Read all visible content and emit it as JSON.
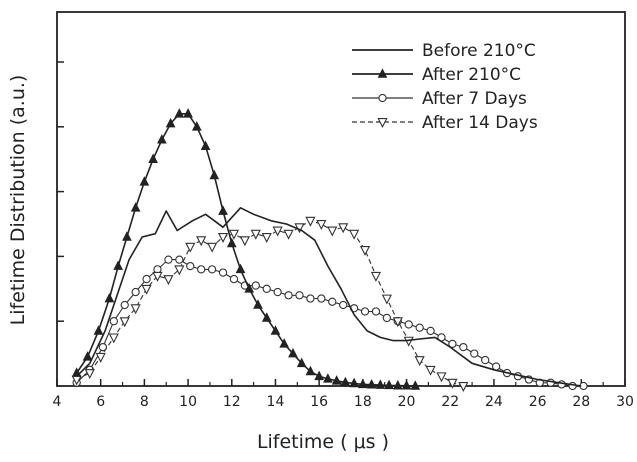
{
  "chart_data": {
    "type": "line",
    "title": "",
    "xlabel": "Lifetime ( μs )",
    "ylabel": "Lifetime Distribution (a.u.)",
    "xlim": [
      4,
      30
    ],
    "ylim": [
      0,
      1
    ],
    "x_ticks": [
      "4",
      "6",
      "8",
      "10",
      "12",
      "14",
      "16",
      "18",
      "20",
      "22",
      "24",
      "26",
      "28",
      "30"
    ],
    "y_tick_values": [
      0.2,
      0.4,
      0.6,
      0.8,
      1.0
    ],
    "y_tick_labels_shown": false,
    "grid": false,
    "legend_position": "top-right",
    "series": [
      {
        "name": "Before 210°C",
        "color": "#222222",
        "marker": "none",
        "dash": "solid",
        "points": [
          [
            4.9,
            0.03
          ],
          [
            5.5,
            0.07
          ],
          [
            6.2,
            0.17
          ],
          [
            6.8,
            0.29
          ],
          [
            7.3,
            0.39
          ],
          [
            7.9,
            0.46
          ],
          [
            8.5,
            0.47
          ],
          [
            9.0,
            0.54
          ],
          [
            9.5,
            0.48
          ],
          [
            10.2,
            0.51
          ],
          [
            10.8,
            0.53
          ],
          [
            11.6,
            0.49
          ],
          [
            12.4,
            0.55
          ],
          [
            13.0,
            0.53
          ],
          [
            13.8,
            0.51
          ],
          [
            14.5,
            0.5
          ],
          [
            15.2,
            0.48
          ],
          [
            15.8,
            0.45
          ],
          [
            16.4,
            0.37
          ],
          [
            17.0,
            0.3
          ],
          [
            17.6,
            0.22
          ],
          [
            18.2,
            0.17
          ],
          [
            18.8,
            0.15
          ],
          [
            19.4,
            0.14
          ],
          [
            20.0,
            0.14
          ],
          [
            20.6,
            0.145
          ],
          [
            21.3,
            0.15
          ],
          [
            22.0,
            0.12
          ],
          [
            23.0,
            0.07
          ],
          [
            24.0,
            0.05
          ],
          [
            25.0,
            0.035
          ],
          [
            26.0,
            0.02
          ],
          [
            27.0,
            0.01
          ],
          [
            28.0,
            0.0
          ]
        ]
      },
      {
        "name": "After 210°C",
        "color": "#222222",
        "marker": "triangle-up-filled",
        "dash": "solid",
        "points": [
          [
            4.9,
            0.04
          ],
          [
            5.4,
            0.09
          ],
          [
            5.9,
            0.17
          ],
          [
            6.4,
            0.27
          ],
          [
            6.8,
            0.37
          ],
          [
            7.2,
            0.46
          ],
          [
            7.6,
            0.55
          ],
          [
            8.0,
            0.63
          ],
          [
            8.4,
            0.7
          ],
          [
            8.8,
            0.76
          ],
          [
            9.2,
            0.81
          ],
          [
            9.6,
            0.84
          ],
          [
            10.0,
            0.84
          ],
          [
            10.4,
            0.8
          ],
          [
            10.8,
            0.74
          ],
          [
            11.2,
            0.65
          ],
          [
            11.6,
            0.54
          ],
          [
            12.0,
            0.44
          ],
          [
            12.4,
            0.36
          ],
          [
            12.8,
            0.3
          ],
          [
            13.2,
            0.25
          ],
          [
            13.6,
            0.21
          ],
          [
            14.0,
            0.17
          ],
          [
            14.4,
            0.13
          ],
          [
            14.8,
            0.1
          ],
          [
            15.2,
            0.07
          ],
          [
            15.6,
            0.045
          ],
          [
            16.0,
            0.03
          ],
          [
            16.4,
            0.022
          ],
          [
            16.8,
            0.016
          ],
          [
            17.2,
            0.011
          ],
          [
            17.6,
            0.008
          ],
          [
            18.0,
            0.005
          ],
          [
            18.4,
            0.004
          ],
          [
            18.8,
            0.003
          ],
          [
            19.2,
            0.002
          ],
          [
            19.6,
            0.001
          ],
          [
            20.0,
            0.001
          ],
          [
            20.4,
            0.0
          ]
        ]
      },
      {
        "name": "After 7 Days",
        "color": "#333333",
        "marker": "circle-open",
        "dash": "solid",
        "points": [
          [
            4.9,
            0.01
          ],
          [
            5.5,
            0.05
          ],
          [
            6.1,
            0.12
          ],
          [
            6.6,
            0.2
          ],
          [
            7.1,
            0.25
          ],
          [
            7.6,
            0.29
          ],
          [
            8.1,
            0.33
          ],
          [
            8.6,
            0.36
          ],
          [
            9.1,
            0.39
          ],
          [
            9.6,
            0.39
          ],
          [
            10.1,
            0.37
          ],
          [
            10.6,
            0.36
          ],
          [
            11.1,
            0.36
          ],
          [
            11.6,
            0.35
          ],
          [
            12.1,
            0.33
          ],
          [
            12.6,
            0.31
          ],
          [
            13.1,
            0.31
          ],
          [
            13.6,
            0.3
          ],
          [
            14.1,
            0.29
          ],
          [
            14.6,
            0.28
          ],
          [
            15.1,
            0.28
          ],
          [
            15.6,
            0.27
          ],
          [
            16.1,
            0.27
          ],
          [
            16.6,
            0.26
          ],
          [
            17.1,
            0.25
          ],
          [
            17.6,
            0.24
          ],
          [
            18.1,
            0.23
          ],
          [
            18.6,
            0.23
          ],
          [
            19.1,
            0.21
          ],
          [
            19.6,
            0.2
          ],
          [
            20.1,
            0.19
          ],
          [
            20.6,
            0.18
          ],
          [
            21.1,
            0.17
          ],
          [
            21.6,
            0.15
          ],
          [
            22.1,
            0.13
          ],
          [
            22.6,
            0.12
          ],
          [
            23.1,
            0.1
          ],
          [
            23.6,
            0.08
          ],
          [
            24.1,
            0.06
          ],
          [
            24.6,
            0.04
          ],
          [
            25.1,
            0.03
          ],
          [
            25.6,
            0.02
          ],
          [
            26.1,
            0.01
          ],
          [
            26.6,
            0.01
          ],
          [
            27.1,
            0.005
          ],
          [
            27.6,
            0.0
          ],
          [
            28.1,
            0.0
          ]
        ]
      },
      {
        "name": "After 14 Days",
        "color": "#333333",
        "marker": "triangle-down-open",
        "dash": "dashed",
        "points": [
          [
            4.9,
            0.02
          ],
          [
            5.5,
            0.04
          ],
          [
            6.0,
            0.09
          ],
          [
            6.6,
            0.15
          ],
          [
            7.1,
            0.2
          ],
          [
            7.6,
            0.24
          ],
          [
            8.1,
            0.3
          ],
          [
            8.6,
            0.34
          ],
          [
            9.1,
            0.33
          ],
          [
            9.6,
            0.36
          ],
          [
            10.1,
            0.43
          ],
          [
            10.6,
            0.45
          ],
          [
            11.1,
            0.43
          ],
          [
            11.6,
            0.46
          ],
          [
            12.1,
            0.47
          ],
          [
            12.6,
            0.45
          ],
          [
            13.1,
            0.47
          ],
          [
            13.6,
            0.46
          ],
          [
            14.1,
            0.48
          ],
          [
            14.6,
            0.47
          ],
          [
            15.1,
            0.49
          ],
          [
            15.6,
            0.51
          ],
          [
            16.1,
            0.5
          ],
          [
            16.6,
            0.48
          ],
          [
            17.1,
            0.49
          ],
          [
            17.6,
            0.47
          ],
          [
            18.1,
            0.42
          ],
          [
            18.6,
            0.34
          ],
          [
            19.1,
            0.27
          ],
          [
            19.6,
            0.2
          ],
          [
            20.1,
            0.14
          ],
          [
            20.6,
            0.08
          ],
          [
            21.1,
            0.05
          ],
          [
            21.6,
            0.03
          ],
          [
            22.1,
            0.01
          ],
          [
            22.6,
            0.0
          ]
        ]
      }
    ]
  }
}
